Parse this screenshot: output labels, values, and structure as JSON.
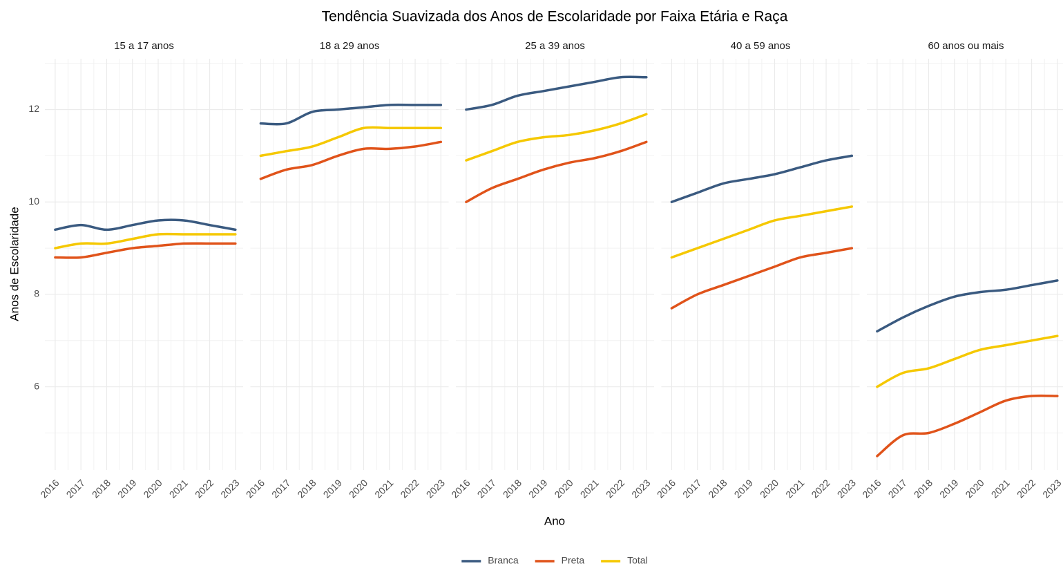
{
  "chart_data": {
    "type": "line",
    "title": "Tendência Suavizada dos Anos de Escolaridade por Faixa Etária e Raça",
    "x_label": "Ano",
    "y_label": "Anos de Escolaridade",
    "facets": [
      "15 a 17 anos",
      "18 a 29 anos",
      "25 a 39 anos",
      "40 a 59 anos",
      "60 anos ou mais"
    ],
    "x": [
      2016,
      2017,
      2018,
      2019,
      2020,
      2021,
      2022,
      2023
    ],
    "xlim": [
      2015.6,
      2023.3
    ],
    "ylim": [
      4.2,
      13.1
    ],
    "yticks": [
      6,
      8,
      10,
      12
    ],
    "yminor": [
      5,
      7,
      9,
      11,
      13
    ],
    "grid": true,
    "legend": "bottom",
    "series": [
      {
        "name": "Branca",
        "color": "#3a5a80",
        "values": [
          [
            9.4,
            9.5,
            9.4,
            9.5,
            9.6,
            9.6,
            9.5,
            9.4
          ],
          [
            11.7,
            11.7,
            11.95,
            12.0,
            12.05,
            12.1,
            12.1,
            12.1
          ],
          [
            12.0,
            12.1,
            12.3,
            12.4,
            12.5,
            12.6,
            12.7,
            12.7
          ],
          [
            10.0,
            10.2,
            10.4,
            10.5,
            10.6,
            10.75,
            10.9,
            11.0
          ],
          [
            7.2,
            7.5,
            7.75,
            7.95,
            8.05,
            8.1,
            8.2,
            8.3
          ]
        ]
      },
      {
        "name": "Preta",
        "color": "#e0531a",
        "values": [
          [
            8.8,
            8.8,
            8.9,
            9.0,
            9.05,
            9.1,
            9.1,
            9.1
          ],
          [
            10.5,
            10.7,
            10.8,
            11.0,
            11.15,
            11.15,
            11.2,
            11.3
          ],
          [
            10.0,
            10.3,
            10.5,
            10.7,
            10.85,
            10.95,
            11.1,
            11.3
          ],
          [
            7.7,
            8.0,
            8.2,
            8.4,
            8.6,
            8.8,
            8.9,
            9.0
          ],
          [
            4.5,
            4.95,
            5.0,
            5.2,
            5.45,
            5.7,
            5.8,
            5.8
          ]
        ]
      },
      {
        "name": "Total",
        "color": "#f5c800",
        "values": [
          [
            9.0,
            9.1,
            9.1,
            9.2,
            9.3,
            9.3,
            9.3,
            9.3
          ],
          [
            11.0,
            11.1,
            11.2,
            11.4,
            11.6,
            11.6,
            11.6,
            11.6
          ],
          [
            10.9,
            11.1,
            11.3,
            11.4,
            11.45,
            11.55,
            11.7,
            11.9
          ],
          [
            8.8,
            9.0,
            9.2,
            9.4,
            9.6,
            9.7,
            9.8,
            9.9
          ],
          [
            6.0,
            6.3,
            6.4,
            6.6,
            6.8,
            6.9,
            7.0,
            7.1
          ]
        ]
      }
    ]
  }
}
